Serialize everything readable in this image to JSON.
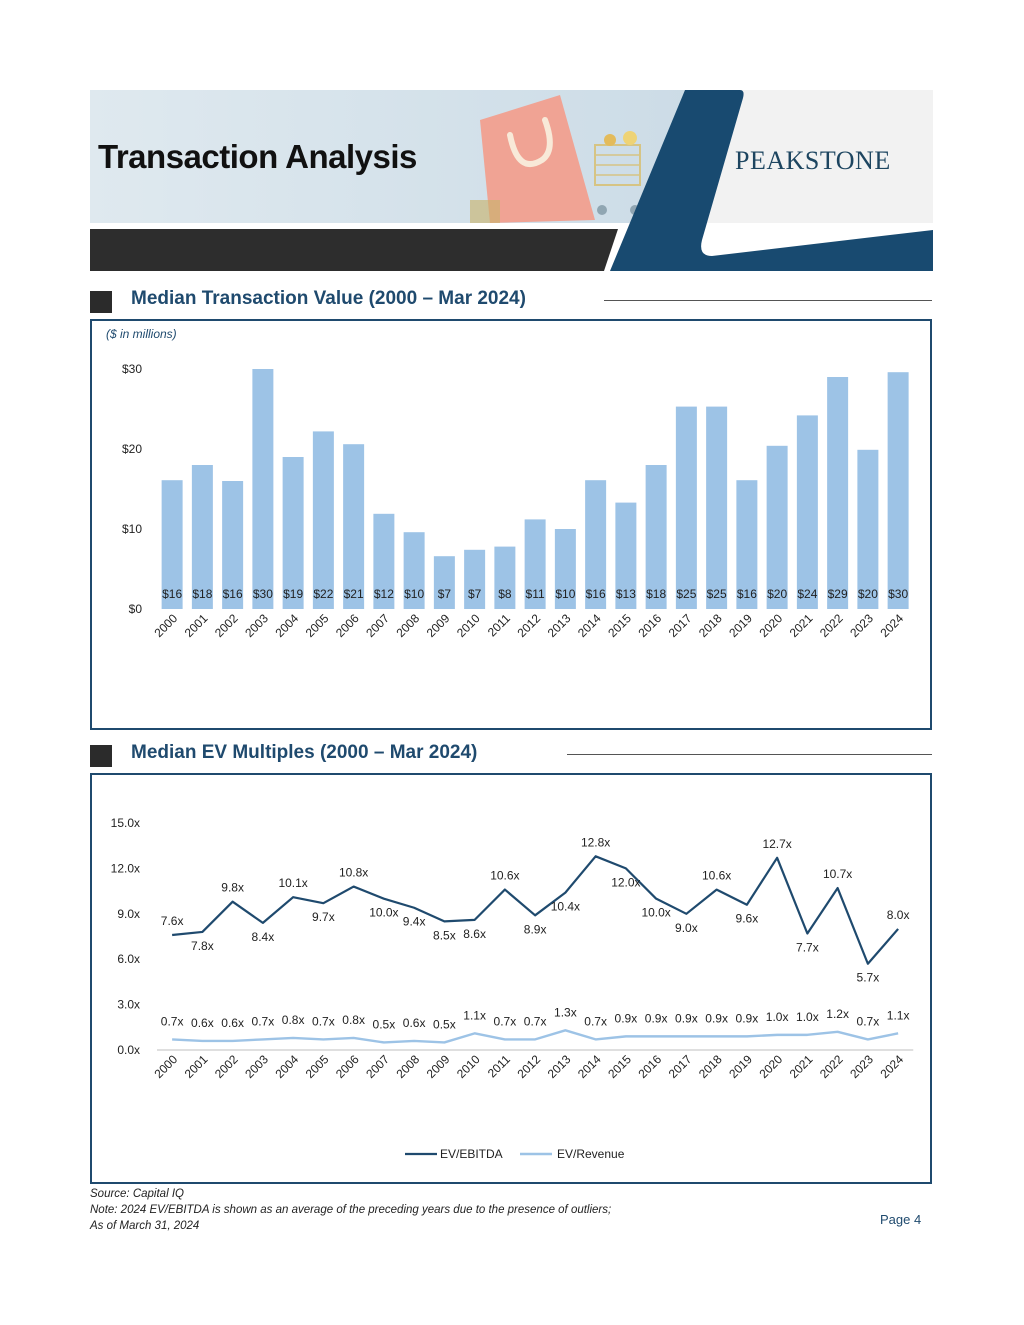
{
  "header": {
    "title": "Transaction Analysis",
    "brand": "PEAKSTONE"
  },
  "sections": {
    "value_title": "Median Transaction Value (2000 – Mar 2024)",
    "value_units": "($ in millions)",
    "multiples_title": "Median EV Multiples (2000 – Mar 2024)"
  },
  "footer": {
    "source": "Source: Capital IQ",
    "note": "Note: 2024 EV/EBITDA is shown as an average of the preceding years due to the presence of outliers;",
    "asof": "As of March 31, 2024",
    "page": "Page 4"
  },
  "colors": {
    "bar": "#9dc3e6",
    "ev_ebitda": "#1f4a6e",
    "ev_revenue": "#9dc3e6",
    "accent": "#1f4a6e"
  },
  "chart_data": [
    {
      "type": "bar",
      "title": "Median Transaction Value (2000 – Mar 2024)",
      "ylabel": "($ in millions)",
      "categories": [
        "2000",
        "2001",
        "2002",
        "2003",
        "2004",
        "2005",
        "2006",
        "2007",
        "2008",
        "2009",
        "2010",
        "2011",
        "2012",
        "2013",
        "2014",
        "2015",
        "2016",
        "2017",
        "2018",
        "2019",
        "2020",
        "2021",
        "2022",
        "2023",
        "2024"
      ],
      "values": [
        16.1,
        18.0,
        16.0,
        30.0,
        19.0,
        22.2,
        20.6,
        11.9,
        9.6,
        6.6,
        7.4,
        7.8,
        11.2,
        10.0,
        16.1,
        13.3,
        18.0,
        25.3,
        25.3,
        16.1,
        20.4,
        24.2,
        29.0,
        19.9,
        29.6
      ],
      "data_labels": [
        "$16",
        "$18",
        "$16",
        "$30",
        "$19",
        "$22",
        "$21",
        "$12",
        "$10",
        "$7",
        "$7",
        "$8",
        "$11",
        "$10",
        "$16",
        "$13",
        "$18",
        "$25",
        "$25",
        "$16",
        "$20",
        "$24",
        "$29",
        "$20",
        "$30"
      ],
      "ylim": [
        0,
        30
      ],
      "yticks": [
        0,
        10,
        20,
        30
      ],
      "ytick_labels": [
        "$0",
        "$10",
        "$20",
        "$30"
      ],
      "grid": false
    },
    {
      "type": "line",
      "title": "Median EV Multiples (2000 – Mar 2024)",
      "categories": [
        "2000",
        "2001",
        "2002",
        "2003",
        "2004",
        "2005",
        "2006",
        "2007",
        "2008",
        "2009",
        "2010",
        "2011",
        "2012",
        "2013",
        "2014",
        "2015",
        "2016",
        "2017",
        "2018",
        "2019",
        "2020",
        "2021",
        "2022",
        "2023",
        "2024"
      ],
      "series": [
        {
          "name": "EV/EBITDA",
          "values": [
            7.6,
            7.8,
            9.8,
            8.4,
            10.1,
            9.7,
            10.8,
            10.0,
            9.4,
            8.5,
            8.6,
            10.6,
            8.9,
            10.4,
            12.8,
            12.0,
            10.0,
            9.0,
            10.6,
            9.6,
            12.7,
            7.7,
            10.7,
            5.7,
            8.0
          ],
          "labels": [
            "7.6x",
            "7.8x",
            "9.8x",
            "8.4x",
            "10.1x",
            "9.7x",
            "10.8x",
            "10.0x",
            "9.4x",
            "8.5x",
            "8.6x",
            "10.6x",
            "8.9x",
            "10.4x",
            "12.8x",
            "12.0x",
            "10.0x",
            "9.0x",
            "10.6x",
            "9.6x",
            "12.7x",
            "7.7x",
            "10.7x",
            "5.7x",
            "8.0x"
          ]
        },
        {
          "name": "EV/Revenue",
          "values": [
            0.7,
            0.6,
            0.6,
            0.7,
            0.8,
            0.7,
            0.8,
            0.5,
            0.6,
            0.5,
            1.1,
            0.7,
            0.7,
            1.3,
            0.7,
            0.9,
            0.9,
            0.9,
            0.9,
            0.9,
            1.0,
            1.0,
            1.2,
            0.7,
            1.1
          ],
          "labels": [
            "0.7x",
            "0.6x",
            "0.6x",
            "0.7x",
            "0.8x",
            "0.7x",
            "0.8x",
            "0.5x",
            "0.6x",
            "0.5x",
            "1.1x",
            "0.7x",
            "0.7x",
            "1.3x",
            "0.7x",
            "0.9x",
            "0.9x",
            "0.9x",
            "0.9x",
            "0.9x",
            "1.0x",
            "1.0x",
            "1.2x",
            "0.7x",
            "1.1x"
          ]
        }
      ],
      "ylim": [
        0,
        15
      ],
      "yticks": [
        0,
        3,
        6,
        9,
        12,
        15
      ],
      "ytick_labels": [
        "0.0x",
        "3.0x",
        "6.0x",
        "9.0x",
        "12.0x",
        "15.0x"
      ],
      "legend": "bottom-center",
      "grid": false
    }
  ]
}
